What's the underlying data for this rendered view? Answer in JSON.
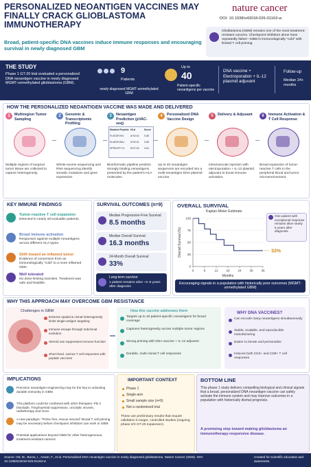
{
  "header": {
    "title": "PERSONALIZED NEOANTIGEN VACCINES MAY FINALLY CRACK GLIOBLASTOMA IMMUNOTHERAPY",
    "journal": "nature cancer",
    "doi": "DOI: 10.1038/s43018-026-01163-w",
    "subtitle": "Broad, patient-specific DNA vaccines induce immune responses and encouraging survival in newly diagnosed GBM",
    "context_note": "Glioblastoma (GBM) remains one of the most treatment-resistant cancers. Checkpoint inhibitors alone have repeatedly failed—GBM is immunologically “cold” with limited T cell priming."
  },
  "study": {
    "heading": "THE STUDY",
    "description": "Phase 1 GT-20 trial evaluated a personalized DNA neoantigen vaccine in newly diagnosed MGMT-unmethylated glioblastoma (GBM).",
    "patients_number": "9",
    "patients_label": "Patients",
    "patients_detail": "newly diagnosed MGMT-unmethylated GBM",
    "neoantigens_prefix": "Up to",
    "neoantigens_number": "40",
    "neoantigens_label": "Patient-specific neoantigens per vaccine",
    "delivery": "DNA vaccine + Electroporation + IL-12 plasmid adjuvant",
    "followup_label": "Follow-up",
    "followup_value": "Median 24+ months"
  },
  "process": {
    "heading": "HOW THE PERSONALIZED NEOANTIGEN VACCINE WAS MADE AND DELIVERED",
    "steps": [
      {
        "number": "1",
        "title": "Multiregion Tumor Sampling",
        "text": "Multiple regions of surgical tumor tissue are collected to capture heterogeneity."
      },
      {
        "number": "2",
        "title": "Genomic & Transcriptomic Profiling",
        "text": "Whole-exome sequencing and RNA sequencing identify somatic mutations and gene expression."
      },
      {
        "number": "3",
        "title": "Neoantigen Prediction (pVAC-seq)",
        "text": "Bioinformatic pipeline predicts strongly binding neoantigens presented by the patient's HLA molecules.",
        "table": {
          "header": [
            "Mutated Peptide",
            "HLA",
            "Score"
          ],
          "rows": [
            [
              "FLVEDFVKV",
              "A*02:01",
              "0.89"
            ],
            [
              "KLMEEVNAL",
              "A*02:01",
              "0.85"
            ],
            [
              "SPRWYFYYL",
              "B*07:02",
              "0.81"
            ]
          ]
        }
      },
      {
        "number": "4",
        "title": "Personalized DNA Vaccine Design",
        "text": "Up to 40 neoantigen sequences are encoded into a multi-neoantigen DNA plasmid vaccine."
      },
      {
        "number": "5",
        "title": "Delivery & Adjuvant",
        "text": "Intramuscular injection with electroporation + IL-12 plasmid adjuvant to boost immune activation."
      },
      {
        "number": "6",
        "title": "Immune Activation & T Cell Response",
        "text": "Broad expansion of tumor-reactive T cells in the peripheral blood and tumor microenvironment."
      }
    ]
  },
  "findings": {
    "heading": "KEY IMMUNE FINDINGS",
    "items": [
      {
        "title": "Tumor-reactive T cell expansion",
        "text": "Detected in nearly all evaluable patients."
      },
      {
        "title": "Broad immune activation",
        "text": "Responses against multiple neoantigens across different HLA types."
      },
      {
        "title": "Shift toward an inflamed tumor",
        "text": "Evidence of conversion from an immunologically “cold” to a more inflamed state."
      },
      {
        "title": "Well tolerated",
        "text": "No dose-limiting toxicities. Treatment was safe and feasible."
      }
    ]
  },
  "survival": {
    "heading": "SURVIVAL OUTCOMES (n=9)",
    "items": [
      {
        "label": "Median Progression-Free Survival",
        "value": "8.5 months"
      },
      {
        "label": "Median Overall Survival",
        "value": "16.3 months"
      },
      {
        "label": "24-Month Overall Survival",
        "value": "33%"
      },
      {
        "label": "Long-term survivor",
        "value": "1 patient remains alive ~4–5 years after diagnosis"
      }
    ]
  },
  "overall_survival": {
    "heading": "OVERALL SURVIVAL",
    "subtitle": "Kaplan-Meier Estimate",
    "y_label": "Overall Survival (%)",
    "x_label": "Months",
    "callout": "One patient with exceptional response remains alive nearly 5 years after diagnosis.",
    "end_label": "33%",
    "banner": "Encouraging signals in a population with historically poor outcomes (MGMT-unmethylated GBM)",
    "chart": {
      "type": "line",
      "xlim": [
        0,
        36
      ],
      "ylim": [
        0,
        100
      ],
      "xticks": [
        0,
        6,
        12,
        18,
        24,
        30,
        36
      ],
      "yticks": [
        0,
        25,
        50,
        75,
        100
      ],
      "x": [
        0,
        3,
        6,
        9,
        12,
        16,
        21,
        36
      ],
      "y": [
        100,
        89,
        78,
        67,
        56,
        44,
        33,
        33
      ],
      "color": "#2b3a7a"
    }
  },
  "resistance": {
    "heading": "WHY THIS APPROACH MAY OVERCOME GBM RESISTANCE",
    "challenges_title": "Challenges in GBM",
    "challenges": [
      "Extreme spatial & clonal heterogeneity limits single-antigen targeting",
      "Immune escape through subclonal evolution",
      "Steroid use suppresses immune function",
      "Short-lived, narrow T cell responses with peptide vaccines"
    ],
    "solutions_title": "How this vaccine addresses them",
    "solutions": [
      "Targets up to 40 patient-specific neoantigens for broad coverage",
      "Captures heterogeneity across multiple tumor regions",
      "Strong priming with DNA vaccine + IL-12 adjuvant",
      "Durable, multi-clonal T cell responses"
    ],
    "dna_title": "WHY DNA VACCINES?",
    "dna_reasons": [
      "Can encode many neoantigens simultaneously",
      "Stable, scalable, and reproducible manufacturing",
      "Easier to iterate and personalize",
      "Induces both CD4+ and CD8+ T cell responses"
    ]
  },
  "implications": {
    "heading": "IMPLICATIONS",
    "items": [
      "Precision neoantigen-engineering may be the key to unlocking durable immunity in GBM.",
      "This platform could be combined with other therapies: PD-1 blockade, Treg/myeloid suppression, oncolytic viruses, radiotherapy and more.",
      "A new paradigm: “Prime first, rescue second” Broad T cell priming may be necessary before checkpoint inhibitors can work in GBM.",
      "Potential applications beyond GBM for other heterogeneous, treatment-resistant cancers."
    ]
  },
  "context": {
    "heading": "IMPORTANT CONTEXT",
    "items": [
      "Phase 1",
      "Single-arm",
      "Small sample size (n=9)",
      "Not a randomized trial"
    ],
    "note": "These are preliminary results that require validation in larger, controlled studies (ongoing phase 2/3 GT-20 expansion)."
  },
  "bottom_line": {
    "heading": "BOTTOM LINE",
    "text": "This phase 1 study delivers compelling biological and clinical signals that a broad, personalized DNA neoantigen vaccine can safely activate the immune system and may improve outcomes in a population with historically dismal prognosis.",
    "highlight": "A promising step toward making glioblastoma an immunotherapy-responsive disease."
  },
  "footer": {
    "source": "Source: Ott, M., Burza, I., Anwer, F., et al. Personalized DNA neoantigen vaccine in newly diagnosed glioblastoma. Nature Cancer (2026). DOI: 10.1038/s43018-026-01163-w",
    "credit": "Created for scientific education and awareness."
  }
}
